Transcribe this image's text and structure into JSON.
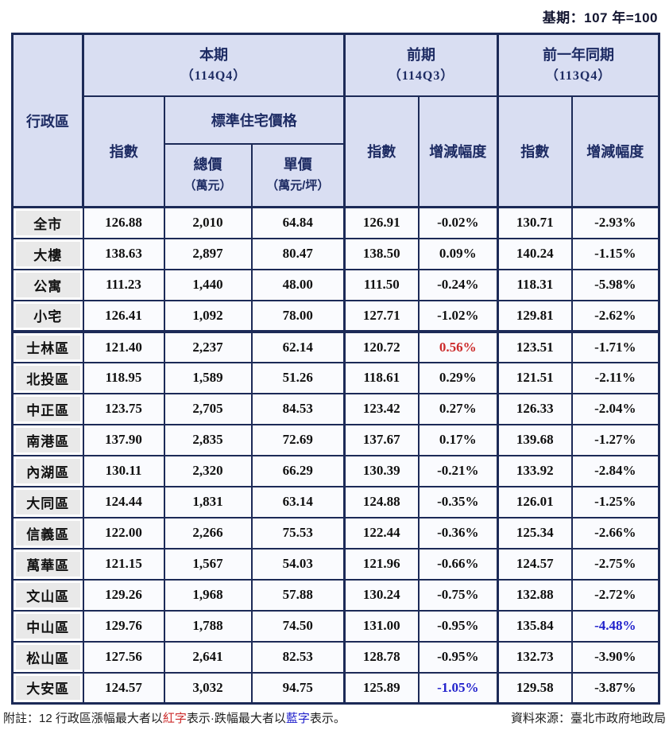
{
  "page": {
    "base_period_note": "基期：107 年=100",
    "footnote": {
      "prefix": "附註：12 行政區漲幅最大者以",
      "red_word": "紅字",
      "middle": "表示·跌幅最大者以",
      "blue_word": "藍字",
      "suffix": "表示。",
      "source": "資料來源：臺北市政府地政局"
    }
  },
  "colors": {
    "red": "#cc2b2b",
    "blue": "#2222cc",
    "navy_border": "#1c2a57",
    "header_bg": "#d9def2",
    "header_text": "#1d2b63",
    "label_bg": "#e9e9e9",
    "cell_bg": "#fafbfe"
  },
  "table": {
    "region_header": "行政區",
    "groups": [
      {
        "title": "本期",
        "period": "（114Q4）"
      },
      {
        "title": "前期",
        "period": "（114Q3）"
      },
      {
        "title": "前一年同期",
        "period": "（113Q4）"
      }
    ],
    "standard_housing_label": "標準住宅價格",
    "columns": {
      "index": "指數",
      "total_price": "總價",
      "total_price_unit": "（萬元）",
      "unit_price": "單價",
      "unit_price_unit": "（萬元/坪）",
      "change": "增減幅度"
    },
    "rows": [
      {
        "name": "全市",
        "kind": "summary",
        "cells": [
          "126.88",
          "2,010",
          "64.84",
          "126.91",
          "-0.02%",
          "130.71",
          "-2.93%"
        ],
        "highlights": {}
      },
      {
        "name": "大樓",
        "kind": "summary",
        "cells": [
          "138.63",
          "2,897",
          "80.47",
          "138.50",
          "0.09%",
          "140.24",
          "-1.15%"
        ],
        "highlights": {}
      },
      {
        "name": "公寓",
        "kind": "summary",
        "cells": [
          "111.23",
          "1,440",
          "48.00",
          "111.50",
          "-0.24%",
          "118.31",
          "-5.98%"
        ],
        "highlights": {}
      },
      {
        "name": "小宅",
        "kind": "summary",
        "cells": [
          "126.41",
          "1,092",
          "78.00",
          "127.71",
          "-1.02%",
          "129.81",
          "-2.62%"
        ],
        "highlights": {}
      },
      {
        "name": "士林區",
        "kind": "district",
        "cells": [
          "121.40",
          "2,237",
          "62.14",
          "120.72",
          "0.56%",
          "123.51",
          "-1.71%"
        ],
        "highlights": {
          "4": "red"
        }
      },
      {
        "name": "北投區",
        "kind": "district",
        "cells": [
          "118.95",
          "1,589",
          "51.26",
          "118.61",
          "0.29%",
          "121.51",
          "-2.11%"
        ],
        "highlights": {}
      },
      {
        "name": "中正區",
        "kind": "district",
        "cells": [
          "123.75",
          "2,705",
          "84.53",
          "123.42",
          "0.27%",
          "126.33",
          "-2.04%"
        ],
        "highlights": {}
      },
      {
        "name": "南港區",
        "kind": "district",
        "cells": [
          "137.90",
          "2,835",
          "72.69",
          "137.67",
          "0.17%",
          "139.68",
          "-1.27%"
        ],
        "highlights": {}
      },
      {
        "name": "內湖區",
        "kind": "district",
        "cells": [
          "130.11",
          "2,320",
          "66.29",
          "130.39",
          "-0.21%",
          "133.92",
          "-2.84%"
        ],
        "highlights": {}
      },
      {
        "name": "大同區",
        "kind": "district",
        "cells": [
          "124.44",
          "1,831",
          "63.14",
          "124.88",
          "-0.35%",
          "126.01",
          "-1.25%"
        ],
        "highlights": {}
      },
      {
        "name": "信義區",
        "kind": "district",
        "cells": [
          "122.00",
          "2,266",
          "75.53",
          "122.44",
          "-0.36%",
          "125.34",
          "-2.66%"
        ],
        "highlights": {}
      },
      {
        "name": "萬華區",
        "kind": "district",
        "cells": [
          "121.15",
          "1,567",
          "54.03",
          "121.96",
          "-0.66%",
          "124.57",
          "-2.75%"
        ],
        "highlights": {}
      },
      {
        "name": "文山區",
        "kind": "district",
        "cells": [
          "129.26",
          "1,968",
          "57.88",
          "130.24",
          "-0.75%",
          "132.88",
          "-2.72%"
        ],
        "highlights": {}
      },
      {
        "name": "中山區",
        "kind": "district",
        "cells": [
          "129.76",
          "1,788",
          "74.50",
          "131.00",
          "-0.95%",
          "135.84",
          "-4.48%"
        ],
        "highlights": {
          "6": "blue"
        }
      },
      {
        "name": "松山區",
        "kind": "district",
        "cells": [
          "127.56",
          "2,641",
          "82.53",
          "128.78",
          "-0.95%",
          "132.73",
          "-3.90%"
        ],
        "highlights": {}
      },
      {
        "name": "大安區",
        "kind": "district",
        "cells": [
          "124.57",
          "3,032",
          "94.75",
          "125.89",
          "-1.05%",
          "129.58",
          "-3.87%"
        ],
        "highlights": {
          "4": "blue"
        }
      }
    ]
  }
}
